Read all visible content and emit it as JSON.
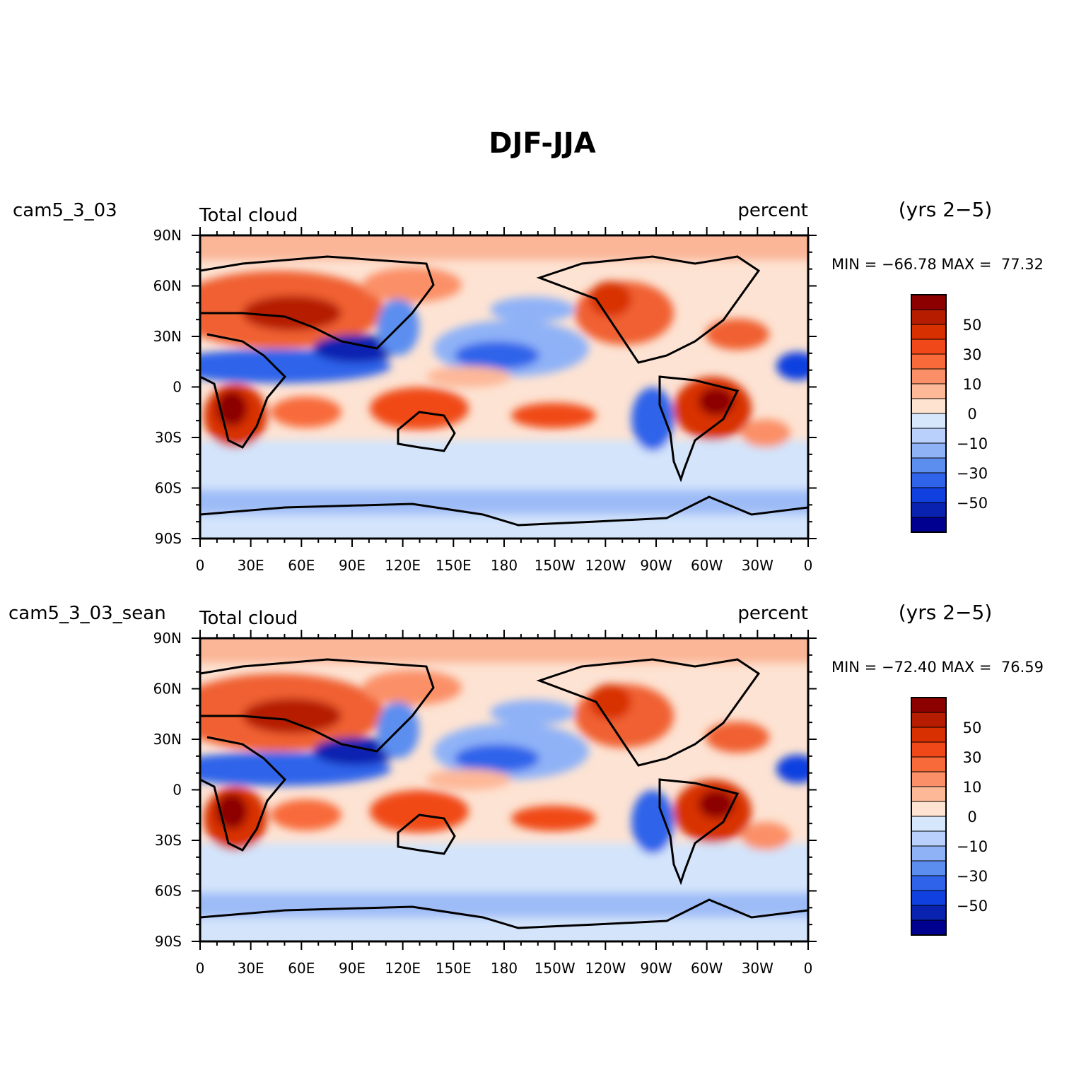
{
  "title": "DJF-JJA",
  "lon_ticks": [
    "0",
    "30E",
    "60E",
    "90E",
    "120E",
    "150E",
    "180",
    "150W",
    "120W",
    "90W",
    "60W",
    "30W",
    "0"
  ],
  "lat_ticks": [
    "90N",
    "60N",
    "30N",
    "0",
    "30S",
    "60S",
    "90S"
  ],
  "colorbar": {
    "colors": [
      "#8c0000",
      "#b51c00",
      "#d83000",
      "#f04818",
      "#f86a3a",
      "#fb9068",
      "#fdb898",
      "#fee3d0",
      "#d6e6fb",
      "#b8d0fb",
      "#8fb2f7",
      "#5c8ef0",
      "#2e63ea",
      "#1040e0",
      "#0a22b0",
      "#000090"
    ],
    "labels": [
      "50",
      "30",
      "10",
      "0",
      "−10",
      "−30",
      "−50"
    ]
  },
  "panels": [
    {
      "case": "cam5_3_03",
      "variable": "Total cloud",
      "units": "percent",
      "period": "(yrs 2−5)",
      "stats": "MIN = −66.78 MAX =  77.32"
    },
    {
      "case": "cam5_3_03_sean",
      "variable": "Total cloud",
      "units": "percent",
      "period": "(yrs 2−5)",
      "stats": "MIN = −72.40 MAX =  76.59"
    }
  ]
}
